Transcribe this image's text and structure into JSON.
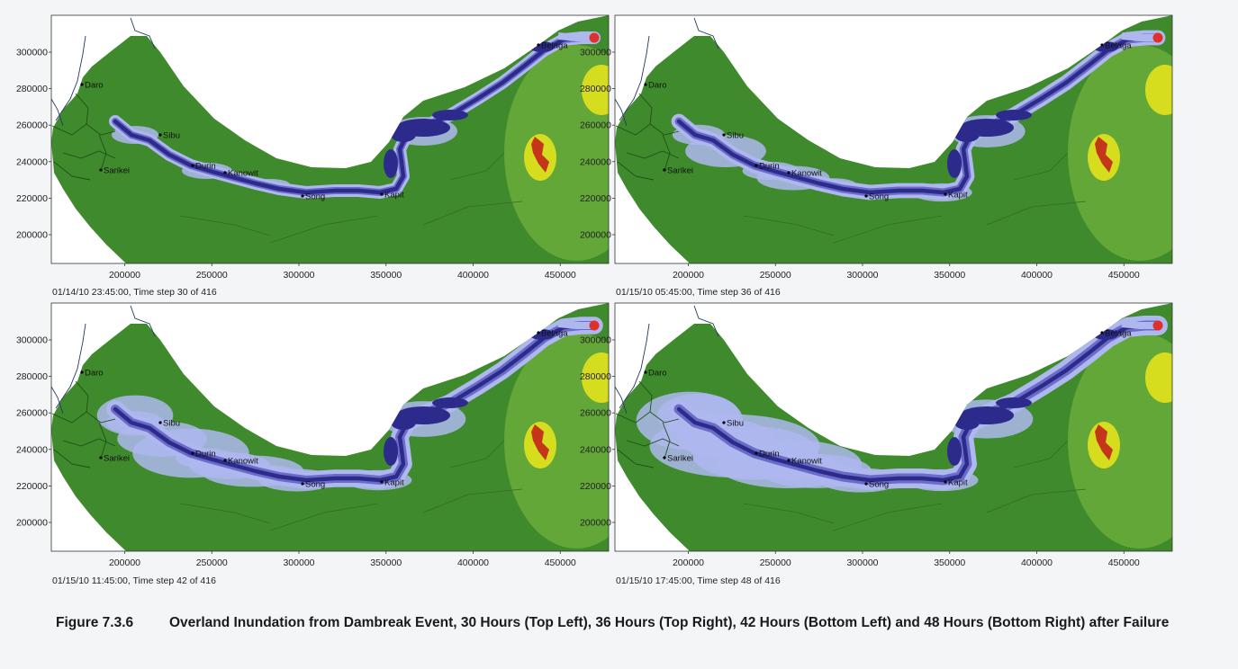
{
  "panels": [
    {
      "id": "top-left",
      "hours_after_failure": 30,
      "timestamp": "01/14/10 23:45:00, Time step 30 of 416",
      "flood_extent": 0.0
    },
    {
      "id": "top-right",
      "hours_after_failure": 36,
      "timestamp": "01/15/10 05:45:00, Time step 36 of 416",
      "flood_extent": 0.35
    },
    {
      "id": "bottom-left",
      "hours_after_failure": 42,
      "timestamp": "01/15/10 11:45:00, Time step 42 of 416",
      "flood_extent": 0.7
    },
    {
      "id": "bottom-right",
      "hours_after_failure": 48,
      "timestamp": "01/15/10 17:45:00, Time step 48 of 416",
      "flood_extent": 1.0
    }
  ],
  "axes": {
    "x_ticks": [
      "200000",
      "250000",
      "300000",
      "350000",
      "400000",
      "450000"
    ],
    "y_ticks": [
      "300000",
      "280000",
      "260000",
      "240000",
      "220000",
      "200000"
    ]
  },
  "towns": {
    "daro": "Daro",
    "sibu": "Sibu",
    "sarikei": "Sarikei",
    "durin": "Durin",
    "kanowit": "Kanowit",
    "song": "Song",
    "kapit": "Kapit",
    "belaga": "Belaga"
  },
  "colors": {
    "terrain_green": "#3f8a2c",
    "upland_green": "#70b03c",
    "highland_yellow": "#d6dc1e",
    "peak_red": "#c4361a",
    "deep_water": "#2c2b8c",
    "shallow_water": "#aeb7ee",
    "dam_marker": "#e0302a"
  },
  "caption": {
    "number": "Figure 7.3.6",
    "text": "Overland Inundation from Dambreak Event, 30 Hours (Top Left), 36 Hours (Top Right), 42 Hours (Bottom Left) and 48 Hours (Bottom Right) after Failure"
  }
}
